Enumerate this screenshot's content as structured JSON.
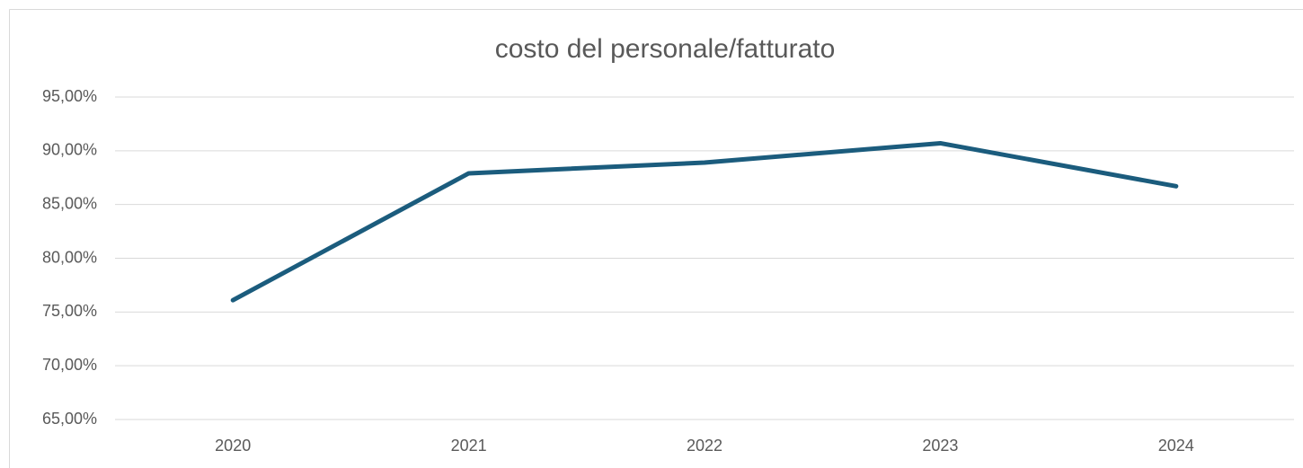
{
  "chart_data": {
    "type": "line",
    "title": "costo del personale/fatturato",
    "categories": [
      "2020",
      "2021",
      "2022",
      "2023",
      "2024"
    ],
    "series": [
      {
        "name": null,
        "color": "#1b5c7d",
        "values": [
          76.1,
          87.9,
          88.9,
          90.7,
          86.7
        ]
      }
    ],
    "ylim": [
      65,
      95
    ],
    "yticks": [
      {
        "value": 65,
        "label": "65,00%"
      },
      {
        "value": 70,
        "label": "70,00%"
      },
      {
        "value": 75,
        "label": "75,00%"
      },
      {
        "value": 80,
        "label": "80,00%"
      },
      {
        "value": 85,
        "label": "85,00%"
      },
      {
        "value": 90,
        "label": "90,00%"
      },
      {
        "value": 95,
        "label": "95,00%"
      }
    ],
    "grid": true
  }
}
